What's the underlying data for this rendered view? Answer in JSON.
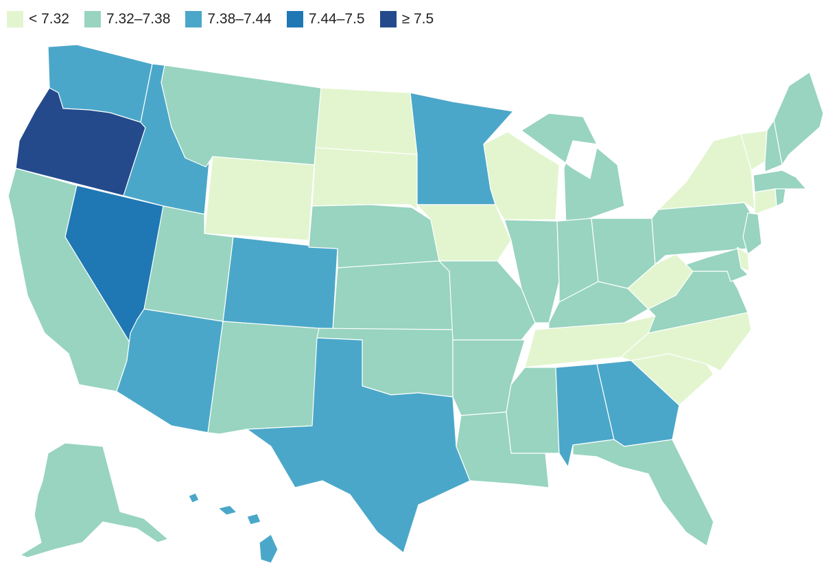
{
  "legend": {
    "items": [
      {
        "label": "< 7.32",
        "color": "#e2f5cf"
      },
      {
        "label": "7.32–7.38",
        "color": "#98d4c0"
      },
      {
        "label": "7.38–7.44",
        "color": "#4ba7c9"
      },
      {
        "label": "7.44–7.5",
        "color": "#1f78b4"
      },
      {
        "label": "≥ 7.5",
        "color": "#244a8c"
      }
    ]
  },
  "map": {
    "states": [
      {
        "id": "WA",
        "class": 2
      },
      {
        "id": "OR",
        "class": 4
      },
      {
        "id": "CA",
        "class": 1
      },
      {
        "id": "NV",
        "class": 3
      },
      {
        "id": "ID",
        "class": 2
      },
      {
        "id": "MT",
        "class": 1
      },
      {
        "id": "WY",
        "class": 0
      },
      {
        "id": "UT",
        "class": 1
      },
      {
        "id": "AZ",
        "class": 2
      },
      {
        "id": "CO",
        "class": 2
      },
      {
        "id": "NM",
        "class": 1
      },
      {
        "id": "ND",
        "class": 0
      },
      {
        "id": "SD",
        "class": 0
      },
      {
        "id": "NE",
        "class": 1
      },
      {
        "id": "KS",
        "class": 1
      },
      {
        "id": "OK",
        "class": 1
      },
      {
        "id": "TX",
        "class": 2
      },
      {
        "id": "MN",
        "class": 2
      },
      {
        "id": "IA",
        "class": 0
      },
      {
        "id": "MO",
        "class": 1
      },
      {
        "id": "AR",
        "class": 1
      },
      {
        "id": "LA",
        "class": 1
      },
      {
        "id": "WI",
        "class": 0
      },
      {
        "id": "IL",
        "class": 1
      },
      {
        "id": "MI",
        "class": 1
      },
      {
        "id": "IN",
        "class": 1
      },
      {
        "id": "OH",
        "class": 1
      },
      {
        "id": "KY",
        "class": 1
      },
      {
        "id": "TN",
        "class": 0
      },
      {
        "id": "MS",
        "class": 1
      },
      {
        "id": "AL",
        "class": 2
      },
      {
        "id": "GA",
        "class": 2
      },
      {
        "id": "FL",
        "class": 1
      },
      {
        "id": "SC",
        "class": 0
      },
      {
        "id": "NC",
        "class": 0
      },
      {
        "id": "VA",
        "class": 1
      },
      {
        "id": "WV",
        "class": 0
      },
      {
        "id": "PA",
        "class": 1
      },
      {
        "id": "NY",
        "class": 0
      },
      {
        "id": "VT",
        "class": 0
      },
      {
        "id": "NH",
        "class": 1
      },
      {
        "id": "ME",
        "class": 1
      },
      {
        "id": "MA",
        "class": 1
      },
      {
        "id": "CT",
        "class": 0
      },
      {
        "id": "RI",
        "class": 1
      },
      {
        "id": "NJ",
        "class": 1
      },
      {
        "id": "DE",
        "class": 0
      },
      {
        "id": "MD",
        "class": 1
      },
      {
        "id": "AK",
        "class": 1
      },
      {
        "id": "HI",
        "class": 2
      }
    ]
  }
}
